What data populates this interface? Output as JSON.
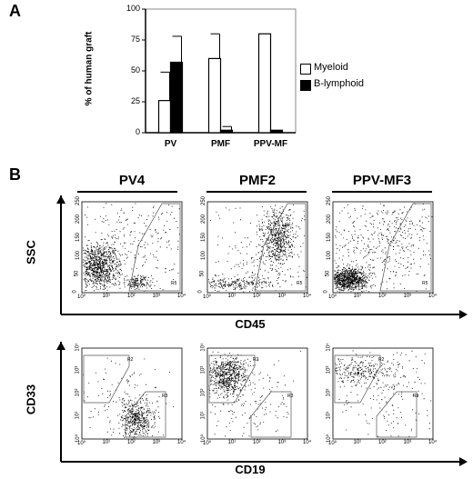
{
  "panels": {
    "a": "A",
    "b": "B"
  },
  "chart_data": [
    {
      "type": "bar",
      "title": "",
      "xlabel": "",
      "ylabel": "% of human graft",
      "ylim": [
        0,
        100
      ],
      "yticks": [
        "0",
        "25",
        "50",
        "75",
        "100"
      ],
      "categories": [
        "PV",
        "PMF",
        "PPV-MF"
      ],
      "series": [
        {
          "name": "Myeloid",
          "color": "#ffffff",
          "values": [
            26,
            60,
            80
          ],
          "error": [
            23,
            20,
            0
          ]
        },
        {
          "name": "B-lymphoid",
          "color": "#000000",
          "values": [
            57,
            2,
            2
          ],
          "error": [
            21,
            3,
            0
          ]
        }
      ],
      "legend_position": "right",
      "grid": false
    },
    {
      "type": "scatter",
      "description": "flow cytometry dot plots, log-log axes",
      "columns": [
        "PV4",
        "PMF2",
        "PPV-MF3"
      ],
      "rows": [
        {
          "ylabel": "SSC",
          "xlabel": "CD45",
          "y_scale": "linear",
          "yticks": [
            "0",
            "50",
            "100",
            "150",
            "200",
            "250"
          ],
          "gates": [
            "R5"
          ]
        },
        {
          "ylabel": "CD33",
          "xlabel": "CD19",
          "y_scale": "log",
          "yticks": [
            "10⁰",
            "10¹",
            "10²",
            "10³",
            "10⁴"
          ],
          "gates": [
            "R2",
            "R3"
          ]
        }
      ],
      "xticks": [
        "10⁰",
        "10¹",
        "10²",
        "10³",
        "10⁴"
      ],
      "x_scale": "log"
    }
  ]
}
